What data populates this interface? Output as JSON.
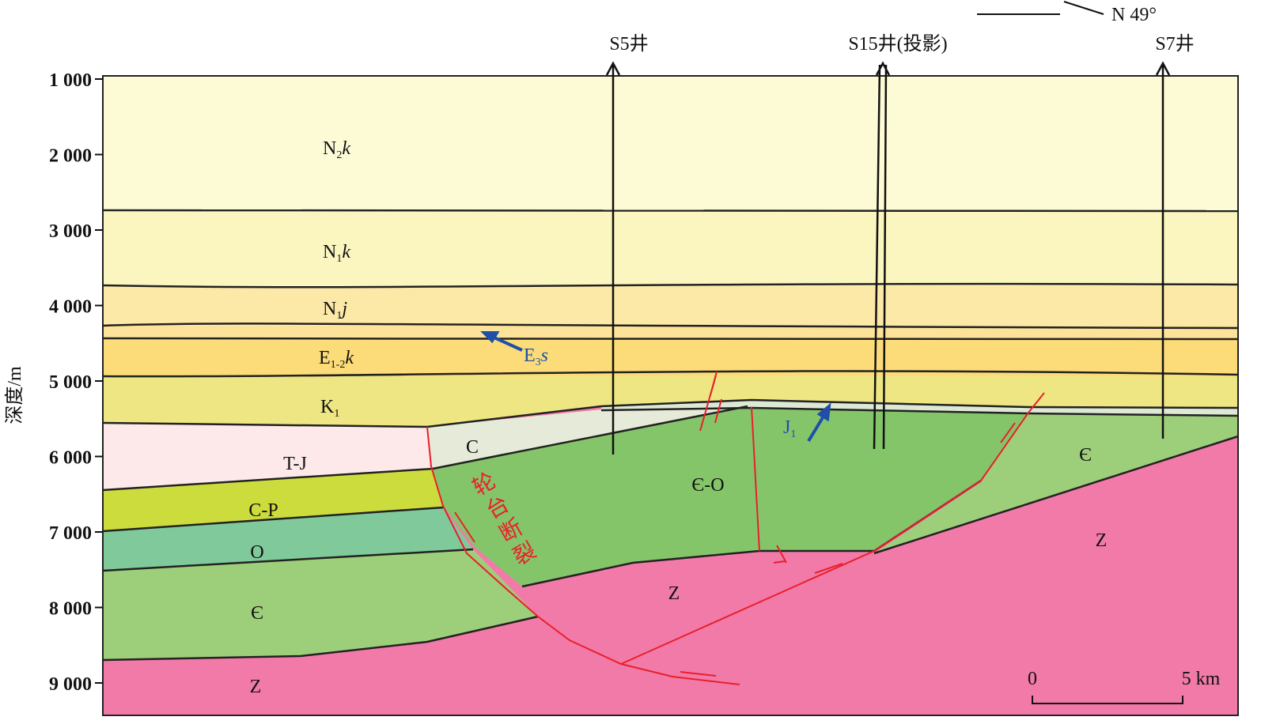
{
  "axis": {
    "label": "深度/m",
    "ticks": [
      {
        "value": 1000,
        "label": "1 000"
      },
      {
        "value": 2000,
        "label": "2 000"
      },
      {
        "value": 3000,
        "label": "3 000"
      },
      {
        "value": 4000,
        "label": "4 000"
      },
      {
        "value": 5000,
        "label": "5 000"
      },
      {
        "value": 6000,
        "label": "6 000"
      },
      {
        "value": 7000,
        "label": "7 000"
      },
      {
        "value": 8000,
        "label": "8 000"
      },
      {
        "value": 9000,
        "label": "9 000"
      }
    ]
  },
  "wells": [
    "S5井",
    "S15井(投影)",
    "S7井"
  ],
  "north": "N 49°",
  "scale": {
    "start": "0",
    "end": "5 km"
  },
  "fault": "轮台断裂",
  "strata": {
    "n2k": {
      "base": "N",
      "sub": "2",
      "italic": "k"
    },
    "n1k": {
      "base": "N",
      "sub": "1",
      "italic": "k"
    },
    "n1j": {
      "base": "N",
      "sub": "1",
      "italic": "j"
    },
    "e3s": {
      "base": "E",
      "sub": "3",
      "italic": "s"
    },
    "e12k": {
      "base": "E",
      "sub": "1-2",
      "italic": "k"
    },
    "k1": {
      "base": "K",
      "sub": "1"
    },
    "j1": {
      "base": "J",
      "sub": "1"
    },
    "tj": "T-J",
    "cp": "C-P",
    "o": "O",
    "cam": "Є",
    "z": "Z",
    "c": "C",
    "camo": "Є-O"
  }
}
